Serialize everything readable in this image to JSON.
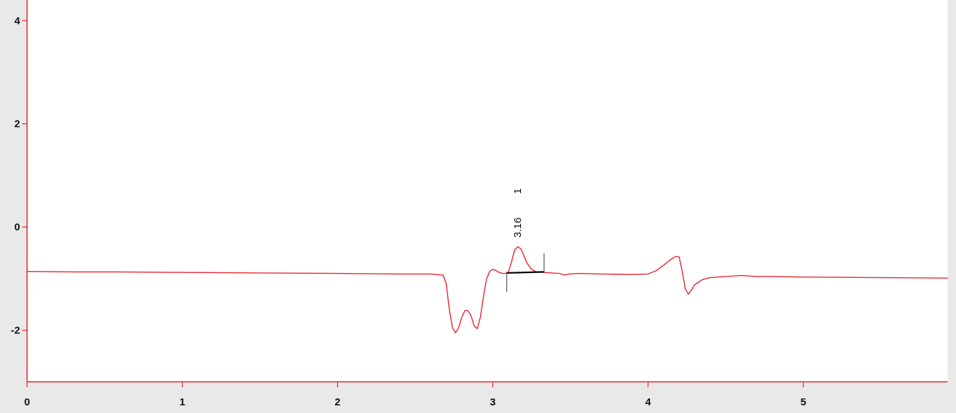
{
  "chart_data": {
    "type": "line",
    "title": "",
    "xlabel": "",
    "ylabel": "",
    "xlim": [
      0,
      5.93
    ],
    "ylim": [
      -3.0,
      4.4
    ],
    "grid": false,
    "legend": "none",
    "x_ticks": [
      0,
      1,
      2,
      3,
      4,
      5
    ],
    "x_tick_labels": [
      "0",
      "1",
      "2",
      "3",
      "4",
      "5"
    ],
    "y_ticks": [
      4,
      2,
      0,
      -2
    ],
    "y_tick_labels": [
      "4",
      "2",
      "0",
      "-2"
    ],
    "colors": {
      "trace": "#e8202a",
      "axis": "#e8202a",
      "plot_background": "#ffffff",
      "figure_background": "#e9e9e9",
      "baseline_marker": "#000000",
      "bound_marker": "#555555"
    },
    "series": [
      {
        "x": [
          0,
          0.3,
          0.6,
          1.0,
          1.5,
          2.0,
          2.4,
          2.6,
          2.68,
          2.7,
          2.72,
          2.74,
          2.76,
          2.78,
          2.8,
          2.82,
          2.84,
          2.86,
          2.88,
          2.9,
          2.92,
          2.94,
          2.96,
          2.98,
          3.0,
          3.02,
          3.04,
          3.06,
          3.08,
          3.1,
          3.12,
          3.14,
          3.16,
          3.18,
          3.2,
          3.22,
          3.25,
          3.28,
          3.32,
          3.38,
          3.43,
          3.46,
          3.49,
          3.55,
          3.7,
          3.9,
          4.0,
          4.05,
          4.1,
          4.15,
          4.18,
          4.2,
          4.22,
          4.24,
          4.26,
          4.28,
          4.3,
          4.35,
          4.4,
          4.5,
          4.6,
          4.7,
          4.8,
          5.0,
          5.5,
          5.93
        ],
        "y": [
          -0.86,
          -0.87,
          -0.87,
          -0.88,
          -0.89,
          -0.9,
          -0.91,
          -0.91,
          -0.93,
          -1.1,
          -1.6,
          -1.95,
          -2.05,
          -1.95,
          -1.75,
          -1.62,
          -1.62,
          -1.72,
          -1.92,
          -1.97,
          -1.75,
          -1.35,
          -1.0,
          -0.86,
          -0.82,
          -0.84,
          -0.88,
          -0.9,
          -0.9,
          -0.88,
          -0.68,
          -0.45,
          -0.38,
          -0.42,
          -0.55,
          -0.7,
          -0.82,
          -0.87,
          -0.88,
          -0.89,
          -0.9,
          -0.93,
          -0.91,
          -0.9,
          -0.91,
          -0.92,
          -0.91,
          -0.85,
          -0.74,
          -0.62,
          -0.57,
          -0.58,
          -0.85,
          -1.2,
          -1.3,
          -1.22,
          -1.12,
          -1.02,
          -0.98,
          -0.96,
          -0.94,
          -0.96,
          -0.96,
          -0.97,
          -0.98,
          -0.99
        ]
      }
    ],
    "annotations": [
      {
        "peak_label": "1",
        "time_label": "3.16",
        "peak_x": 3.16,
        "peak_y": -0.38,
        "start_x": 3.09,
        "start_y": -0.89,
        "end_x": 3.33,
        "end_y": -0.87
      }
    ]
  }
}
